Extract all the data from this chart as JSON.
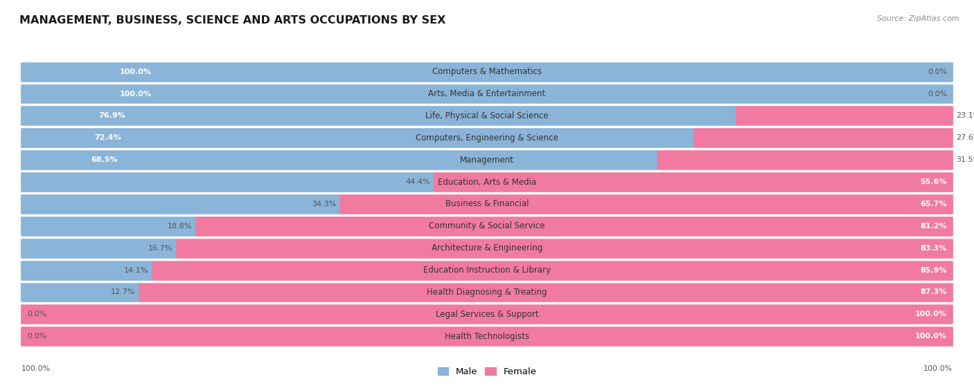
{
  "title": "MANAGEMENT, BUSINESS, SCIENCE AND ARTS OCCUPATIONS BY SEX",
  "source": "Source: ZipAtlas.com",
  "categories": [
    "Computers & Mathematics",
    "Arts, Media & Entertainment",
    "Life, Physical & Social Science",
    "Computers, Engineering & Science",
    "Management",
    "Education, Arts & Media",
    "Business & Financial",
    "Community & Social Service",
    "Architecture & Engineering",
    "Education Instruction & Library",
    "Health Diagnosing & Treating",
    "Legal Services & Support",
    "Health Technologists"
  ],
  "male": [
    100.0,
    100.0,
    76.9,
    72.4,
    68.5,
    44.4,
    34.3,
    18.8,
    16.7,
    14.1,
    12.7,
    0.0,
    0.0
  ],
  "female": [
    0.0,
    0.0,
    23.1,
    27.6,
    31.5,
    55.6,
    65.7,
    81.2,
    83.3,
    85.9,
    87.3,
    100.0,
    100.0
  ],
  "male_color": "#8ab4d8",
  "female_color": "#f07aa0",
  "bar_bg_color": "#e5e5e5",
  "row_bg_even": "#f7f7f7",
  "row_bg_odd": "#ffffff",
  "title_fontsize": 11.5,
  "label_fontsize": 8.5,
  "pct_fontsize": 8.0,
  "legend_fontsize": 9.5,
  "source_fontsize": 8.0
}
